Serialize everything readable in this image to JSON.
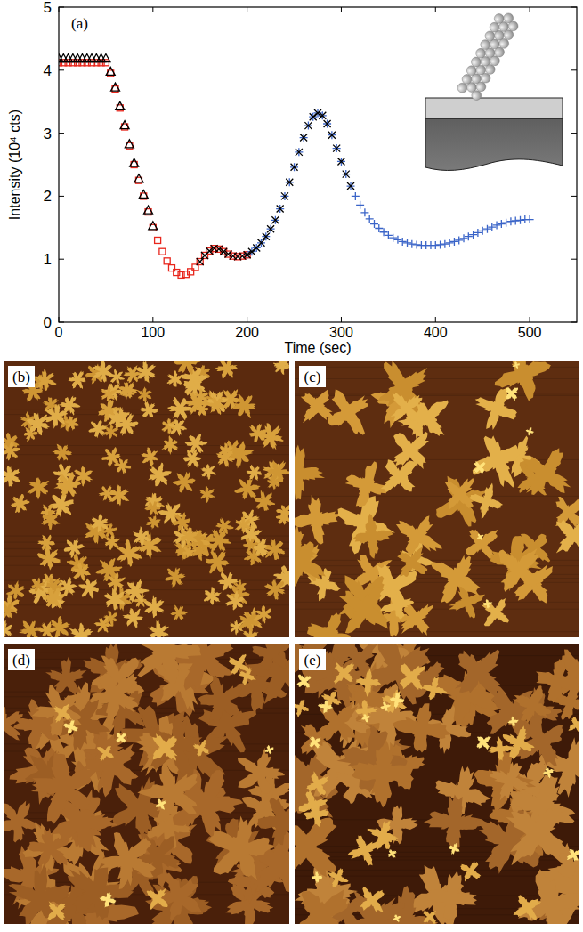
{
  "chart_data": {
    "type": "scatter",
    "panel_label": "(a)",
    "x_label": "Time (sec)",
    "y_label": "Intensity (10⁴ cts)",
    "xlim": [
      0,
      550
    ],
    "ylim": [
      0,
      5
    ],
    "xticks": [
      0,
      100,
      200,
      300,
      400,
      500
    ],
    "yticks": [
      0,
      1,
      2,
      3,
      4,
      5
    ],
    "grid": false,
    "series": [
      {
        "color": "#e8261c",
        "marker": "square",
        "x": [
          0,
          5,
          10,
          15,
          20,
          25,
          30,
          35,
          40,
          45,
          50,
          55,
          60,
          65,
          70,
          75,
          80,
          85,
          90,
          95,
          100,
          105,
          110,
          115,
          120,
          125,
          130,
          135,
          140,
          145,
          150,
          155,
          160,
          165,
          170,
          175,
          180,
          185,
          190,
          195,
          200
        ],
        "values": [
          4.12,
          4.12,
          4.12,
          4.12,
          4.12,
          4.12,
          4.12,
          4.12,
          4.12,
          4.12,
          4.12,
          3.95,
          3.7,
          3.4,
          3.1,
          2.8,
          2.5,
          2.25,
          2.0,
          1.75,
          1.5,
          1.3,
          1.12,
          0.97,
          0.86,
          0.79,
          0.75,
          0.76,
          0.8,
          0.87,
          0.96,
          1.06,
          1.13,
          1.17,
          1.16,
          1.12,
          1.08,
          1.05,
          1.04,
          1.05,
          1.07
        ]
      },
      {
        "color": "#3a64c8",
        "marker": "plus",
        "x": [
          200,
          205,
          210,
          215,
          220,
          225,
          230,
          235,
          240,
          245,
          250,
          255,
          260,
          265,
          270,
          275,
          280,
          285,
          290,
          295,
          300,
          305,
          310,
          315,
          320,
          325,
          330,
          335,
          340,
          345,
          350,
          355,
          360,
          365,
          370,
          375,
          380,
          385,
          390,
          395,
          400,
          405,
          410,
          415,
          420,
          425,
          430,
          435,
          440,
          445,
          450,
          455,
          460,
          465,
          470,
          475,
          480,
          485,
          490,
          495,
          500
        ],
        "values": [
          1.07,
          1.12,
          1.18,
          1.26,
          1.36,
          1.48,
          1.62,
          1.8,
          2.0,
          2.22,
          2.46,
          2.7,
          2.93,
          3.12,
          3.26,
          3.32,
          3.28,
          3.15,
          2.97,
          2.76,
          2.55,
          2.35,
          2.16,
          2.0,
          1.86,
          1.74,
          1.64,
          1.56,
          1.49,
          1.43,
          1.38,
          1.34,
          1.31,
          1.28,
          1.26,
          1.24,
          1.23,
          1.22,
          1.22,
          1.22,
          1.22,
          1.23,
          1.24,
          1.26,
          1.28,
          1.3,
          1.33,
          1.36,
          1.39,
          1.42,
          1.45,
          1.48,
          1.51,
          1.54,
          1.56,
          1.58,
          1.6,
          1.61,
          1.62,
          1.63,
          1.63
        ]
      },
      {
        "color": "#000000",
        "marker": "x",
        "x": [
          150,
          155,
          160,
          165,
          170,
          175,
          180,
          185,
          190,
          195,
          200,
          205,
          210,
          215,
          220,
          225,
          230,
          235,
          240,
          245,
          250,
          255,
          260,
          265,
          270,
          275,
          280,
          285,
          290,
          295,
          300,
          305,
          310
        ],
        "values": [
          0.96,
          1.06,
          1.13,
          1.17,
          1.16,
          1.12,
          1.08,
          1.05,
          1.04,
          1.05,
          1.07,
          1.12,
          1.18,
          1.26,
          1.36,
          1.48,
          1.62,
          1.8,
          2.0,
          2.22,
          2.46,
          2.7,
          2.93,
          3.12,
          3.26,
          3.32,
          3.28,
          3.15,
          2.97,
          2.76,
          2.55,
          2.35,
          2.16
        ]
      },
      {
        "color": "#000000",
        "marker": "triangle",
        "x": [
          0,
          5,
          10,
          15,
          20,
          25,
          30,
          35,
          40,
          45,
          50,
          55,
          60,
          65,
          70,
          75,
          80,
          85,
          90,
          95,
          100
        ],
        "values": [
          4.18,
          4.18,
          4.18,
          4.18,
          4.18,
          4.18,
          4.18,
          4.18,
          4.18,
          4.18,
          4.18,
          3.97,
          3.72,
          3.42,
          3.12,
          2.82,
          2.52,
          2.27,
          2.02,
          1.77,
          1.52
        ]
      }
    ]
  },
  "images": [
    {
      "panel_label": "(b)"
    },
    {
      "panel_label": "(c)"
    },
    {
      "panel_label": "(d)"
    },
    {
      "panel_label": "(e)"
    }
  ]
}
